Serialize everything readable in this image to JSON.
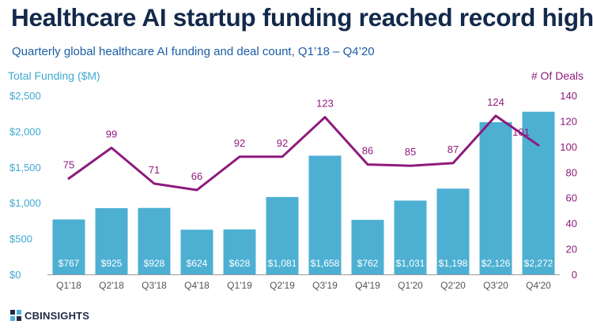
{
  "header": {
    "title": "Healthcare AI startup funding reached record high",
    "subtitle": "Quarterly global healthcare AI funding and deal count, Q1’18 – Q4’20"
  },
  "brand": {
    "logo_text": "CBINSIGHTS"
  },
  "colors": {
    "bar": "#4db0d3",
    "line": "#8e1b7c",
    "axis_left": "#3fa8d1",
    "title": "#13294b",
    "subtitle": "#1a5da6"
  },
  "chart_data": {
    "type": "bar",
    "title": "Healthcare AI startup funding reached record high",
    "subtitle": "Quarterly global healthcare AI funding and deal count, Q1’18 – Q4’20",
    "categories": [
      "Q1'18",
      "Q2'18",
      "Q3'18",
      "Q4'18",
      "Q1'19",
      "Q2'19",
      "Q3'19",
      "Q4'19",
      "Q1'20",
      "Q2'20",
      "Q3'20",
      "Q4'20"
    ],
    "series": [
      {
        "name": "Total Funding ($M)",
        "type": "bar",
        "axis": "left",
        "values": [
          767,
          925,
          928,
          624,
          628,
          1081,
          1658,
          762,
          1031,
          1198,
          2126,
          2272
        ],
        "labels": [
          "$767",
          "$925",
          "$928",
          "$624",
          "$628",
          "$1,081",
          "$1,658",
          "$762",
          "$1,031",
          "$1,198",
          "$2,126",
          "$2,272"
        ]
      },
      {
        "name": "# Of Deals",
        "type": "line",
        "axis": "right",
        "values": [
          75,
          99,
          71,
          66,
          92,
          92,
          123,
          86,
          85,
          87,
          124,
          101
        ],
        "labels": [
          "75",
          "99",
          "71",
          "66",
          "92",
          "92",
          "123",
          "86",
          "85",
          "87",
          "124",
          "101"
        ]
      }
    ],
    "y_left": {
      "label": "Total Funding ($M)",
      "range": [
        0,
        2500
      ],
      "ticks": [
        "$0",
        "$500",
        "$1,000",
        "$1,500",
        "$2,000",
        "$2,500"
      ],
      "tick_values": [
        0,
        500,
        1000,
        1500,
        2000,
        2500
      ]
    },
    "y_right": {
      "label": "# Of Deals",
      "range": [
        0,
        140
      ],
      "ticks": [
        "0",
        "20",
        "40",
        "60",
        "80",
        "100",
        "120",
        "140"
      ],
      "tick_values": [
        0,
        20,
        40,
        60,
        80,
        100,
        120,
        140
      ]
    },
    "grid": false,
    "legend": "none"
  }
}
